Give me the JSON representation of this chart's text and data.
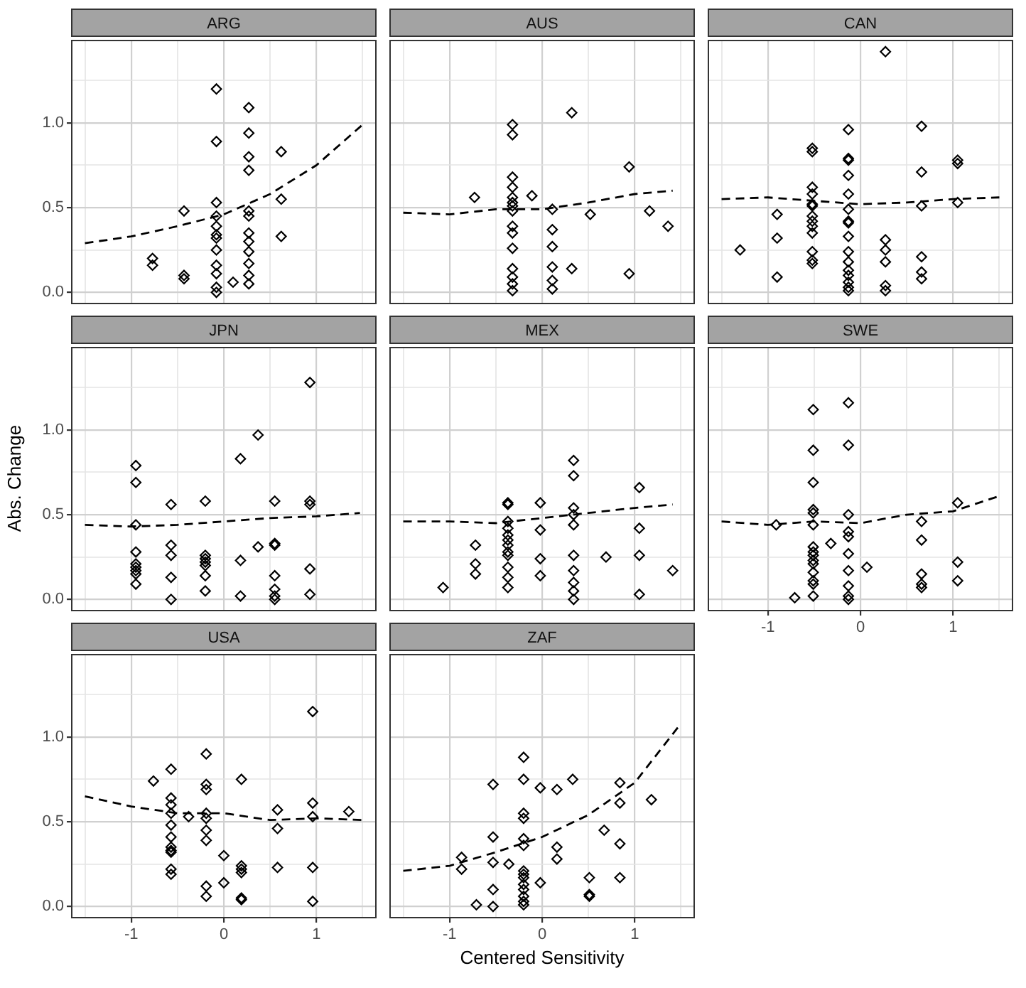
{
  "chart_data": [
    {
      "type": "scatter",
      "title": "ARG",
      "xlim": [
        -1.65,
        1.65
      ],
      "ylim": [
        -0.07,
        1.49
      ],
      "xticks": [
        {
          "value": -1.5,
          "label": null
        },
        -1,
        {
          "value": -0.5,
          "label": null
        },
        0,
        {
          "value": 0.5,
          "label": null
        },
        1,
        {
          "value": 1.5,
          "label": null
        }
      ],
      "yticks": [
        {
          "value": 0,
          "label": "0.0"
        },
        {
          "value": 0.25,
          "label": null
        },
        {
          "value": 0.5,
          "label": "0.5"
        },
        {
          "value": 0.75,
          "label": null
        },
        {
          "value": 1,
          "label": "1.0"
        },
        {
          "value": 1.25,
          "label": null
        }
      ],
      "grid": true,
      "tick_labels": "y",
      "series": [
        {
          "type": "scatter",
          "color": "#000000",
          "marker": "diamond",
          "x": [
            -0.77,
            -0.77,
            -0.43,
            -0.43,
            -0.43,
            -0.08,
            -0.08,
            -0.08,
            -0.08,
            -0.08,
            -0.08,
            -0.08,
            -0.08,
            -0.08,
            -0.08,
            -0.08,
            -0.08,
            0.1,
            0.27,
            0.27,
            0.27,
            0.27,
            0.27,
            0.27,
            0.27,
            0.27,
            0.27,
            0.27,
            0.27,
            0.27,
            0.62,
            0.62,
            0.62
          ],
          "values": [
            0.2,
            0.16,
            0.1,
            0.08,
            0.48,
            1.2,
            0.89,
            0.53,
            0.45,
            0.39,
            0.34,
            0.32,
            0.25,
            0.16,
            0.11,
            0.03,
            0.0,
            0.06,
            1.09,
            0.94,
            0.8,
            0.72,
            0.48,
            0.45,
            0.35,
            0.3,
            0.24,
            0.17,
            0.1,
            0.05,
            0.83,
            0.55,
            0.33
          ]
        },
        {
          "type": "line",
          "color": "#000000",
          "marker": "none",
          "line_style": "dashed",
          "x": [
            -1.5,
            -1,
            -0.5,
            0,
            0.5,
            1,
            1.5
          ],
          "values": [
            0.29,
            0.33,
            0.39,
            0.46,
            0.58,
            0.75,
            0.99
          ]
        }
      ]
    },
    {
      "type": "scatter",
      "title": "AUS",
      "xlim": [
        -1.65,
        1.65
      ],
      "ylim": [
        -0.07,
        1.49
      ],
      "xticks": [
        {
          "value": -1.5,
          "label": null
        },
        -1,
        {
          "value": -0.5,
          "label": null
        },
        0,
        {
          "value": 0.5,
          "label": null
        },
        1,
        {
          "value": 1.5,
          "label": null
        }
      ],
      "yticks": [
        0,
        {
          "value": 0.25,
          "label": null
        },
        0.5,
        {
          "value": 0.75,
          "label": null
        },
        1,
        {
          "value": 1.25,
          "label": null
        }
      ],
      "grid": true,
      "tick_labels": false,
      "series": [
        {
          "type": "scatter",
          "color": "#000000",
          "marker": "diamond",
          "x": [
            -0.73,
            -0.32,
            -0.32,
            -0.32,
            -0.32,
            -0.32,
            -0.32,
            -0.32,
            -0.32,
            -0.32,
            -0.32,
            -0.32,
            -0.32,
            -0.32,
            -0.32,
            -0.32,
            -0.11,
            0.11,
            0.11,
            0.11,
            0.11,
            0.11,
            0.11,
            0.32,
            0.32,
            0.52,
            0.94,
            0.94,
            1.16,
            1.36
          ],
          "values": [
            0.56,
            0.99,
            0.93,
            0.68,
            0.62,
            0.56,
            0.53,
            0.51,
            0.48,
            0.39,
            0.35,
            0.26,
            0.14,
            0.09,
            0.05,
            0.01,
            0.57,
            0.49,
            0.37,
            0.27,
            0.15,
            0.07,
            0.02,
            1.06,
            0.14,
            0.46,
            0.74,
            0.11,
            0.48,
            0.39
          ]
        },
        {
          "type": "line",
          "color": "#000000",
          "marker": "none",
          "line_style": "dashed",
          "x": [
            -1.5,
            -1,
            -0.5,
            0,
            0.5,
            1,
            1.41
          ],
          "values": [
            0.47,
            0.46,
            0.49,
            0.49,
            0.53,
            0.58,
            0.6
          ]
        }
      ]
    },
    {
      "type": "scatter",
      "title": "CAN",
      "xlim": [
        -1.65,
        1.65
      ],
      "ylim": [
        -0.07,
        1.49
      ],
      "xticks": [
        {
          "value": -1.5,
          "label": null
        },
        -1,
        {
          "value": -0.5,
          "label": null
        },
        0,
        {
          "value": 0.5,
          "label": null
        },
        1,
        {
          "value": 1.5,
          "label": null
        }
      ],
      "yticks": [
        0,
        {
          "value": 0.25,
          "label": null
        },
        0.5,
        {
          "value": 0.75,
          "label": null
        },
        1,
        {
          "value": 1.25,
          "label": null
        }
      ],
      "grid": true,
      "tick_labels": false,
      "series": [
        {
          "type": "scatter",
          "color": "#000000",
          "marker": "diamond",
          "x": [
            -1.3,
            -0.9,
            -0.9,
            -0.9,
            -0.52,
            -0.52,
            -0.52,
            -0.52,
            -0.52,
            -0.52,
            -0.52,
            -0.52,
            -0.52,
            -0.52,
            -0.52,
            -0.52,
            -0.52,
            -0.13,
            -0.13,
            -0.13,
            -0.13,
            -0.13,
            -0.13,
            -0.13,
            -0.13,
            -0.13,
            -0.13,
            -0.13,
            -0.13,
            -0.13,
            -0.13,
            -0.13,
            -0.13,
            0.27,
            0.27,
            0.27,
            0.27,
            0.27,
            0.27,
            0.66,
            0.66,
            0.66,
            0.66,
            0.66,
            0.66,
            1.05,
            1.05,
            1.05
          ],
          "values": [
            0.25,
            0.46,
            0.32,
            0.09,
            0.85,
            0.83,
            0.62,
            0.58,
            0.52,
            0.51,
            0.45,
            0.42,
            0.39,
            0.35,
            0.24,
            0.19,
            0.17,
            0.96,
            0.79,
            0.78,
            0.69,
            0.58,
            0.49,
            0.42,
            0.41,
            0.33,
            0.24,
            0.18,
            0.13,
            0.1,
            0.06,
            0.03,
            0.01,
            1.42,
            0.31,
            0.25,
            0.18,
            0.04,
            0.01,
            0.98,
            0.71,
            0.51,
            0.21,
            0.12,
            0.08,
            0.78,
            0.76,
            0.53
          ]
        },
        {
          "type": "line",
          "color": "#000000",
          "marker": "none",
          "line_style": "dashed",
          "x": [
            -1.5,
            -1,
            -0.5,
            0,
            0.5,
            1,
            1.5
          ],
          "values": [
            0.55,
            0.56,
            0.54,
            0.52,
            0.53,
            0.55,
            0.56
          ]
        }
      ]
    },
    {
      "type": "scatter",
      "title": "JPN",
      "ylabel": "Abs. Change",
      "xlim": [
        -1.65,
        1.65
      ],
      "ylim": [
        -0.07,
        1.49
      ],
      "xticks": [
        {
          "value": -1.5,
          "label": null
        },
        -1,
        {
          "value": -0.5,
          "label": null
        },
        0,
        {
          "value": 0.5,
          "label": null
        },
        1,
        {
          "value": 1.5,
          "label": null
        }
      ],
      "yticks": [
        {
          "value": 0,
          "label": "0.0"
        },
        {
          "value": 0.25,
          "label": null
        },
        {
          "value": 0.5,
          "label": "0.5"
        },
        {
          "value": 0.75,
          "label": null
        },
        {
          "value": 1,
          "label": "1.0"
        },
        {
          "value": 1.25,
          "label": null
        }
      ],
      "grid": true,
      "tick_labels": "y",
      "series": [
        {
          "type": "scatter",
          "color": "#000000",
          "marker": "diamond",
          "x": [
            -0.95,
            -0.95,
            -0.95,
            -0.95,
            -0.95,
            -0.95,
            -0.95,
            -0.95,
            -0.95,
            -0.57,
            -0.57,
            -0.57,
            -0.57,
            -0.57,
            -0.2,
            -0.2,
            -0.2,
            -0.2,
            -0.2,
            -0.2,
            -0.2,
            0.18,
            0.18,
            0.18,
            0.37,
            0.37,
            0.55,
            0.55,
            0.55,
            0.55,
            0.55,
            0.55,
            0.55,
            0.93,
            0.93,
            0.93,
            0.93,
            0.93
          ],
          "values": [
            0.79,
            0.69,
            0.44,
            0.28,
            0.21,
            0.19,
            0.17,
            0.15,
            0.09,
            0.56,
            0.32,
            0.26,
            0.13,
            0.0,
            0.58,
            0.26,
            0.24,
            0.22,
            0.2,
            0.14,
            0.05,
            0.83,
            0.23,
            0.02,
            0.97,
            0.31,
            0.58,
            0.33,
            0.32,
            0.14,
            0.06,
            0.02,
            0.0,
            1.28,
            0.58,
            0.56,
            0.18,
            0.03
          ]
        },
        {
          "type": "line",
          "color": "#000000",
          "marker": "none",
          "line_style": "dashed",
          "x": [
            -1.5,
            -1,
            -0.5,
            0,
            0.5,
            1,
            1.47
          ],
          "values": [
            0.44,
            0.43,
            0.44,
            0.46,
            0.48,
            0.49,
            0.51
          ]
        }
      ]
    },
    {
      "type": "scatter",
      "title": "MEX",
      "xlim": [
        -1.65,
        1.65
      ],
      "ylim": [
        -0.07,
        1.49
      ],
      "xticks": [
        {
          "value": -1.5,
          "label": null
        },
        -1,
        {
          "value": -0.5,
          "label": null
        },
        0,
        {
          "value": 0.5,
          "label": null
        },
        1,
        {
          "value": 1.5,
          "label": null
        }
      ],
      "yticks": [
        0,
        {
          "value": 0.25,
          "label": null
        },
        0.5,
        {
          "value": 0.75,
          "label": null
        },
        1,
        {
          "value": 1.25,
          "label": null
        }
      ],
      "grid": true,
      "tick_labels": false,
      "series": [
        {
          "type": "scatter",
          "color": "#000000",
          "marker": "diamond",
          "x": [
            -1.07,
            -0.72,
            -0.72,
            -0.72,
            -0.37,
            -0.37,
            -0.37,
            -0.37,
            -0.37,
            -0.37,
            -0.37,
            -0.37,
            -0.37,
            -0.37,
            -0.37,
            -0.37,
            -0.02,
            -0.02,
            -0.02,
            -0.02,
            0.34,
            0.34,
            0.34,
            0.34,
            0.34,
            0.34,
            0.34,
            0.34,
            0.34,
            0.34,
            0.69,
            1.05,
            1.05,
            1.05,
            1.05,
            1.41
          ],
          "values": [
            0.07,
            0.32,
            0.21,
            0.15,
            0.57,
            0.56,
            0.46,
            0.42,
            0.38,
            0.35,
            0.32,
            0.28,
            0.26,
            0.19,
            0.13,
            0.07,
            0.57,
            0.41,
            0.24,
            0.14,
            0.82,
            0.73,
            0.54,
            0.5,
            0.44,
            0.26,
            0.17,
            0.1,
            0.05,
            0.0,
            0.25,
            0.66,
            0.42,
            0.26,
            0.03,
            0.17
          ]
        },
        {
          "type": "line",
          "color": "#000000",
          "marker": "none",
          "line_style": "dashed",
          "x": [
            -1.5,
            -1,
            -0.5,
            0,
            0.5,
            1,
            1.41
          ],
          "values": [
            0.46,
            0.46,
            0.45,
            0.48,
            0.51,
            0.54,
            0.56
          ]
        }
      ]
    },
    {
      "type": "scatter",
      "title": "SWE",
      "xlim": [
        -1.65,
        1.65
      ],
      "ylim": [
        -0.07,
        1.49
      ],
      "xticks": [
        {
          "value": -1.5,
          "label": null
        },
        -1,
        {
          "value": -0.5,
          "label": null
        },
        0,
        {
          "value": 0.5,
          "label": null
        },
        1,
        {
          "value": 1.5,
          "label": null
        }
      ],
      "yticks": [
        0,
        {
          "value": 0.25,
          "label": null
        },
        0.5,
        {
          "value": 0.75,
          "label": null
        },
        1,
        {
          "value": 1.25,
          "label": null
        }
      ],
      "grid": true,
      "tick_labels": "x",
      "series": [
        {
          "type": "scatter",
          "color": "#000000",
          "marker": "diamond",
          "x": [
            -0.91,
            -0.71,
            -0.51,
            -0.51,
            -0.51,
            -0.51,
            -0.51,
            -0.51,
            -0.51,
            -0.51,
            -0.51,
            -0.51,
            -0.51,
            -0.51,
            -0.51,
            -0.51,
            -0.51,
            -0.32,
            -0.13,
            -0.13,
            -0.13,
            -0.13,
            -0.13,
            -0.13,
            -0.13,
            -0.13,
            -0.13,
            -0.13,
            0.07,
            0.66,
            0.66,
            0.66,
            0.66,
            0.66,
            1.05,
            1.05,
            1.05
          ],
          "values": [
            0.44,
            0.01,
            1.12,
            0.88,
            0.69,
            0.53,
            0.51,
            0.44,
            0.31,
            0.28,
            0.26,
            0.23,
            0.21,
            0.16,
            0.11,
            0.09,
            0.02,
            0.33,
            1.16,
            0.91,
            0.5,
            0.4,
            0.37,
            0.27,
            0.17,
            0.08,
            0.02,
            0.0,
            0.19,
            0.46,
            0.35,
            0.15,
            0.09,
            0.07,
            0.57,
            0.22,
            0.11
          ]
        },
        {
          "type": "line",
          "color": "#000000",
          "marker": "none",
          "line_style": "dashed",
          "x": [
            -1.5,
            -1,
            -0.5,
            0,
            0.5,
            1,
            1.5
          ],
          "values": [
            0.46,
            0.44,
            0.46,
            0.45,
            0.5,
            0.52,
            0.61
          ]
        }
      ]
    },
    {
      "type": "scatter",
      "title": "USA",
      "xlim": [
        -1.65,
        1.65
      ],
      "ylim": [
        -0.07,
        1.49
      ],
      "xticks": [
        {
          "value": -1.5,
          "label": null
        },
        -1,
        {
          "value": -0.5,
          "label": null
        },
        0,
        {
          "value": 0.5,
          "label": null
        },
        1,
        {
          "value": 1.5,
          "label": null
        }
      ],
      "yticks": [
        {
          "value": 0,
          "label": "0.0"
        },
        {
          "value": 0.25,
          "label": null
        },
        {
          "value": 0.5,
          "label": "0.5"
        },
        {
          "value": 0.75,
          "label": null
        },
        {
          "value": 1,
          "label": "1.0"
        },
        {
          "value": 1.25,
          "label": null
        }
      ],
      "grid": true,
      "series": [
        {
          "type": "scatter",
          "color": "#000000",
          "marker": "diamond",
          "x": [
            -0.76,
            -0.57,
            -0.57,
            -0.57,
            -0.57,
            -0.57,
            -0.57,
            -0.57,
            -0.57,
            -0.57,
            -0.57,
            -0.57,
            -0.38,
            -0.19,
            -0.19,
            -0.19,
            -0.19,
            -0.19,
            -0.19,
            -0.19,
            -0.19,
            -0.19,
            0,
            0,
            0.19,
            0.19,
            0.19,
            0.19,
            0.19,
            0.19,
            0.58,
            0.58,
            0.58,
            0.96,
            0.96,
            0.96,
            0.96,
            0.96,
            1.35
          ],
          "values": [
            0.74,
            0.81,
            0.64,
            0.6,
            0.55,
            0.48,
            0.41,
            0.35,
            0.33,
            0.32,
            0.22,
            0.19,
            0.53,
            0.9,
            0.72,
            0.69,
            0.55,
            0.52,
            0.45,
            0.39,
            0.12,
            0.06,
            0.3,
            0.14,
            0.75,
            0.24,
            0.22,
            0.2,
            0.05,
            0.04,
            0.57,
            0.46,
            0.23,
            1.15,
            0.61,
            0.53,
            0.23,
            0.03,
            0.56
          ]
        },
        {
          "type": "line",
          "color": "#000000",
          "marker": "none",
          "line_style": "dashed",
          "x": [
            -1.5,
            -1,
            -0.5,
            0,
            0.5,
            1,
            1.5
          ],
          "values": [
            0.65,
            0.59,
            0.55,
            0.55,
            0.51,
            0.52,
            0.51
          ]
        }
      ]
    },
    {
      "type": "scatter",
      "title": "ZAF",
      "xlabel": "Centered Sensitivity",
      "xlim": [
        -1.65,
        1.65
      ],
      "ylim": [
        -0.07,
        1.49
      ],
      "xticks": [
        {
          "value": -1.5,
          "label": null
        },
        -1,
        {
          "value": -0.5,
          "label": null
        },
        0,
        {
          "value": 0.5,
          "label": null
        },
        1,
        {
          "value": 1.5,
          "label": null
        }
      ],
      "yticks": [
        0,
        {
          "value": 0.25,
          "label": null
        },
        0.5,
        {
          "value": 0.75,
          "label": null
        },
        1,
        {
          "value": 1.25,
          "label": null
        }
      ],
      "grid": true,
      "tick_labels": "x",
      "series": [
        {
          "type": "scatter",
          "color": "#000000",
          "marker": "diamond",
          "x": [
            -0.87,
            -0.87,
            -0.71,
            -0.53,
            -0.53,
            -0.53,
            -0.53,
            -0.53,
            -0.36,
            -0.2,
            -0.2,
            -0.2,
            -0.2,
            -0.2,
            -0.2,
            -0.2,
            -0.2,
            -0.2,
            -0.2,
            -0.2,
            -0.2,
            -0.2,
            -0.2,
            -0.02,
            -0.02,
            0.16,
            0.16,
            0.16,
            0.33,
            0.51,
            0.51,
            0.51,
            0.67,
            0.84,
            0.84,
            0.84,
            0.84,
            1.18
          ],
          "values": [
            0.29,
            0.22,
            0.01,
            0.72,
            0.41,
            0.26,
            0.1,
            0.0,
            0.25,
            0.88,
            0.75,
            0.55,
            0.52,
            0.4,
            0.36,
            0.21,
            0.19,
            0.17,
            0.13,
            0.1,
            0.06,
            0.03,
            0.01,
            0.7,
            0.14,
            0.69,
            0.35,
            0.28,
            0.75,
            0.17,
            0.07,
            0.06,
            0.45,
            0.73,
            0.61,
            0.37,
            0.17,
            0.63
          ]
        },
        {
          "type": "line",
          "color": "#000000",
          "marker": "none",
          "line_style": "dashed",
          "x": [
            -1.5,
            -1,
            -0.5,
            0,
            0.5,
            1,
            1.5
          ],
          "values": [
            0.21,
            0.24,
            0.32,
            0.41,
            0.54,
            0.73,
            1.08
          ]
        }
      ]
    }
  ]
}
